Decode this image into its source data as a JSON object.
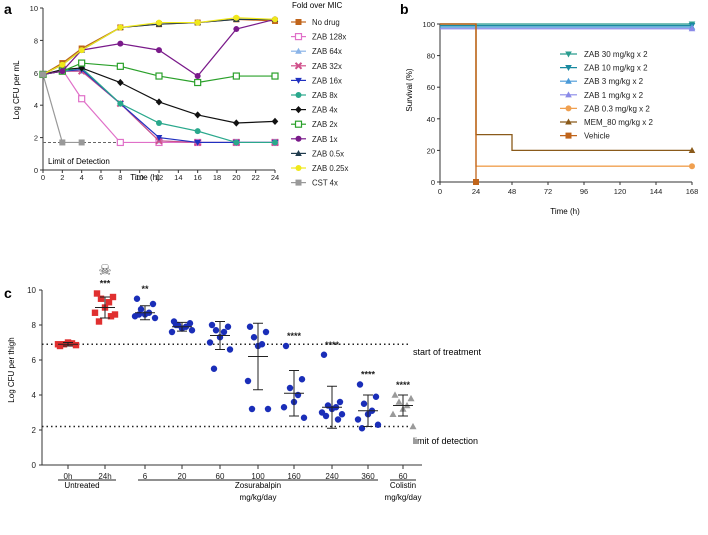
{
  "panels": {
    "a": "a",
    "b": "b",
    "c": "c"
  },
  "chart_data": [
    {
      "type": "line",
      "panel": "a",
      "xlabel": "Time (h)",
      "ylabel": "Log CFU per mL",
      "xlim": [
        0,
        24
      ],
      "ylim": [
        0,
        10
      ],
      "xticks": [
        0,
        2,
        4,
        6,
        8,
        10,
        12,
        14,
        16,
        18,
        20,
        22,
        24
      ],
      "yticks": [
        0,
        2,
        4,
        6,
        8,
        10
      ],
      "legend_title": "Fold over MIC",
      "lod_label": "Limit of Detection",
      "lod": 1.7,
      "series": [
        {
          "name": "No drug",
          "color": "#c0641a",
          "marker": "square-filled",
          "x": [
            0,
            2,
            4,
            8,
            12,
            16,
            20,
            24
          ],
          "y": [
            5.9,
            6.6,
            7.5,
            8.8,
            9.0,
            9.1,
            9.3,
            9.2
          ]
        },
        {
          "name": "ZAB 128x",
          "color": "#e070c8",
          "marker": "square-open",
          "x": [
            0,
            2,
            4,
            8,
            12,
            16,
            20,
            24
          ],
          "y": [
            5.9,
            6.2,
            4.4,
            1.7,
            1.7,
            1.7,
            1.7,
            1.7
          ]
        },
        {
          "name": "ZAB 64x",
          "color": "#8ab4e8",
          "marker": "triangle-up",
          "x": [
            0,
            2,
            4,
            8,
            12,
            16,
            20,
            24
          ],
          "y": [
            5.9,
            6.1,
            6.1,
            4.1,
            1.8,
            1.7,
            1.7,
            1.7
          ]
        },
        {
          "name": "ZAB 32x",
          "color": "#d0508a",
          "marker": "x",
          "x": [
            0,
            2,
            4,
            8,
            12,
            16,
            20,
            24
          ],
          "y": [
            5.9,
            6.1,
            6.1,
            4.1,
            1.8,
            1.7,
            1.7,
            1.7
          ]
        },
        {
          "name": "ZAB 16x",
          "color": "#2030c0",
          "marker": "triangle-down",
          "x": [
            0,
            2,
            4,
            8,
            12,
            16,
            20,
            24
          ],
          "y": [
            5.9,
            6.1,
            6.2,
            4.1,
            2.0,
            1.7,
            1.7,
            1.7
          ]
        },
        {
          "name": "ZAB 8x",
          "color": "#2aa88c",
          "marker": "circle",
          "x": [
            0,
            2,
            4,
            8,
            12,
            16,
            20,
            24
          ],
          "y": [
            5.9,
            6.1,
            6.3,
            4.1,
            2.9,
            2.4,
            1.7,
            1.7
          ]
        },
        {
          "name": "ZAB 4x",
          "color": "#111111",
          "marker": "diamond",
          "x": [
            0,
            2,
            4,
            8,
            12,
            16,
            20,
            24
          ],
          "y": [
            5.9,
            6.2,
            6.3,
            5.4,
            4.2,
            3.4,
            2.9,
            3.0
          ]
        },
        {
          "name": "ZAB 2x",
          "color": "#2aa02a",
          "marker": "square-open",
          "x": [
            0,
            2,
            4,
            8,
            12,
            16,
            20,
            24
          ],
          "y": [
            5.9,
            6.1,
            6.6,
            6.4,
            5.8,
            5.4,
            5.8,
            5.8
          ]
        },
        {
          "name": "ZAB 1x",
          "color": "#7a1a8a",
          "marker": "circle",
          "x": [
            0,
            2,
            4,
            8,
            12,
            16,
            20,
            24
          ],
          "y": [
            5.9,
            6.1,
            7.4,
            7.8,
            7.4,
            5.8,
            8.7,
            9.3
          ]
        },
        {
          "name": "ZAB 0.5x",
          "color": "#1f3b4d",
          "marker": "triangle-up",
          "x": [
            0,
            2,
            4,
            8,
            12,
            16,
            20,
            24
          ],
          "y": [
            5.9,
            6.5,
            7.4,
            8.8,
            9.0,
            9.1,
            9.3,
            9.3
          ]
        },
        {
          "name": "ZAB 0.25x",
          "color": "#f0e81a",
          "marker": "circle",
          "x": [
            0,
            2,
            4,
            8,
            12,
            16,
            20,
            24
          ],
          "y": [
            5.9,
            6.5,
            7.4,
            8.8,
            9.1,
            9.1,
            9.4,
            9.3
          ]
        },
        {
          "name": "CST 4x",
          "color": "#999999",
          "marker": "square-filled",
          "x": [
            0,
            2,
            4
          ],
          "y": [
            5.9,
            1.7,
            1.7
          ]
        }
      ]
    },
    {
      "type": "line",
      "subtype": "survival-step",
      "panel": "b",
      "xlabel": "Time (h)",
      "ylabel": "Survival (%)",
      "xlim": [
        0,
        168
      ],
      "ylim": [
        0,
        100
      ],
      "xticks": [
        0,
        24,
        48,
        72,
        96,
        120,
        144,
        168
      ],
      "yticks": [
        0,
        20,
        40,
        60,
        80,
        100
      ],
      "series": [
        {
          "name": "ZAB 30 mg/kg x 2",
          "color": "#2a9d8f",
          "marker": "triangle-down",
          "steps": [
            [
              0,
              100
            ],
            [
              168,
              100
            ]
          ]
        },
        {
          "name": "ZAB 10 mg/kg x 2",
          "color": "#1a8aa0",
          "marker": "triangle-down",
          "steps": [
            [
              0,
              99
            ],
            [
              168,
              99
            ]
          ]
        },
        {
          "name": "ZAB 3 mg/kg x 2",
          "color": "#4a9ad8",
          "marker": "triangle-up",
          "steps": [
            [
              0,
              98
            ],
            [
              168,
              98
            ]
          ]
        },
        {
          "name": "ZAB 1 mg/kg x 2",
          "color": "#8a8ae8",
          "marker": "triangle-up",
          "steps": [
            [
              0,
              97
            ],
            [
              168,
              97
            ]
          ]
        },
        {
          "name": "ZAB 0.3 mg/kg x 2",
          "color": "#f0a050",
          "marker": "circle",
          "steps": [
            [
              0,
              100
            ],
            [
              24,
              100
            ],
            [
              24,
              10
            ],
            [
              168,
              10
            ]
          ]
        },
        {
          "name": "MEM_80 mg/kg x 2",
          "color": "#8a5a1a",
          "marker": "triangle-up",
          "steps": [
            [
              0,
              100
            ],
            [
              24,
              100
            ],
            [
              24,
              30
            ],
            [
              48,
              30
            ],
            [
              48,
              20
            ],
            [
              168,
              20
            ]
          ]
        },
        {
          "name": "Vehicle",
          "color": "#c0641a",
          "marker": "square-filled",
          "steps": [
            [
              0,
              100
            ],
            [
              24,
              100
            ],
            [
              24,
              0
            ]
          ]
        }
      ]
    },
    {
      "type": "scatter",
      "panel": "c",
      "ylabel": "Log CFU per thigh",
      "ylim": [
        0,
        10
      ],
      "yticks": [
        0,
        2,
        4,
        6,
        8,
        10
      ],
      "reference_lines": [
        {
          "label": "start of treatment",
          "y": 6.9
        },
        {
          "label": "limit of detection",
          "y": 2.2
        }
      ],
      "toxicity_symbol": "☠",
      "groups": [
        {
          "label": "0h",
          "color": "#e03030",
          "marker": "square",
          "mean": 6.9,
          "sd": 0.1,
          "sig": "",
          "points": [
            6.8,
            6.85,
            6.9,
            6.95,
            7.0,
            6.9
          ]
        },
        {
          "label": "24h",
          "color": "#e03030",
          "marker": "square",
          "mean": 9.0,
          "sd": 0.6,
          "sig": "***",
          "points": [
            9.8,
            9.6,
            9.5,
            9.3,
            9.0,
            8.7,
            8.6,
            8.2,
            8.5
          ]
        },
        {
          "label": "6",
          "color": "#1a2eb8",
          "marker": "circle",
          "mean": 8.7,
          "sd": 0.4,
          "sig": "**",
          "points": [
            9.5,
            9.2,
            8.9,
            8.7,
            8.6,
            8.5,
            8.4,
            8.6
          ]
        },
        {
          "label": "20",
          "color": "#1a2eb8",
          "marker": "circle",
          "mean": 7.9,
          "sd": 0.25,
          "sig": "",
          "points": [
            8.2,
            8.1,
            8.0,
            7.9,
            7.8,
            7.6,
            7.7,
            8.0
          ]
        },
        {
          "label": "60",
          "color": "#1a2eb8",
          "marker": "circle",
          "mean": 7.4,
          "sd": 0.8,
          "sig": "",
          "points": [
            8.0,
            7.9,
            7.7,
            7.6,
            7.3,
            7.0,
            6.6,
            5.5
          ]
        },
        {
          "label": "100",
          "color": "#1a2eb8",
          "marker": "circle",
          "mean": 6.2,
          "sd": 1.9,
          "sig": "",
          "points": [
            7.9,
            7.6,
            7.3,
            6.9,
            6.8,
            4.8,
            3.2,
            3.2
          ]
        },
        {
          "label": "160",
          "color": "#1a2eb8",
          "marker": "circle",
          "mean": 4.1,
          "sd": 1.3,
          "sig": "****",
          "points": [
            6.8,
            4.9,
            4.4,
            4.0,
            3.6,
            3.3,
            2.7
          ]
        },
        {
          "label": "240",
          "color": "#1a2eb8",
          "marker": "circle",
          "mean": 3.3,
          "sd": 1.2,
          "sig": "****",
          "points": [
            6.3,
            3.6,
            3.4,
            3.3,
            3.2,
            3.0,
            2.9,
            2.8,
            2.6
          ]
        },
        {
          "label": "360",
          "color": "#1a2eb8",
          "marker": "circle",
          "mean": 3.1,
          "sd": 0.9,
          "sig": "****",
          "points": [
            4.6,
            3.9,
            3.5,
            3.1,
            2.9,
            2.6,
            2.3,
            2.1
          ]
        },
        {
          "label": "60",
          "color": "#9a9a9a",
          "marker": "triangle",
          "mean": 3.4,
          "sd": 0.6,
          "sig": "****",
          "points": [
            4.0,
            3.8,
            3.6,
            3.4,
            3.2,
            2.9,
            2.2
          ]
        }
      ],
      "categories": [
        {
          "line1": "Untreated",
          "line2": ""
        },
        {
          "line1": "Zosurabalpin",
          "line2": "mg/kg/day"
        },
        {
          "line1": "Colistin",
          "line2": "mg/kg/day"
        }
      ]
    }
  ]
}
